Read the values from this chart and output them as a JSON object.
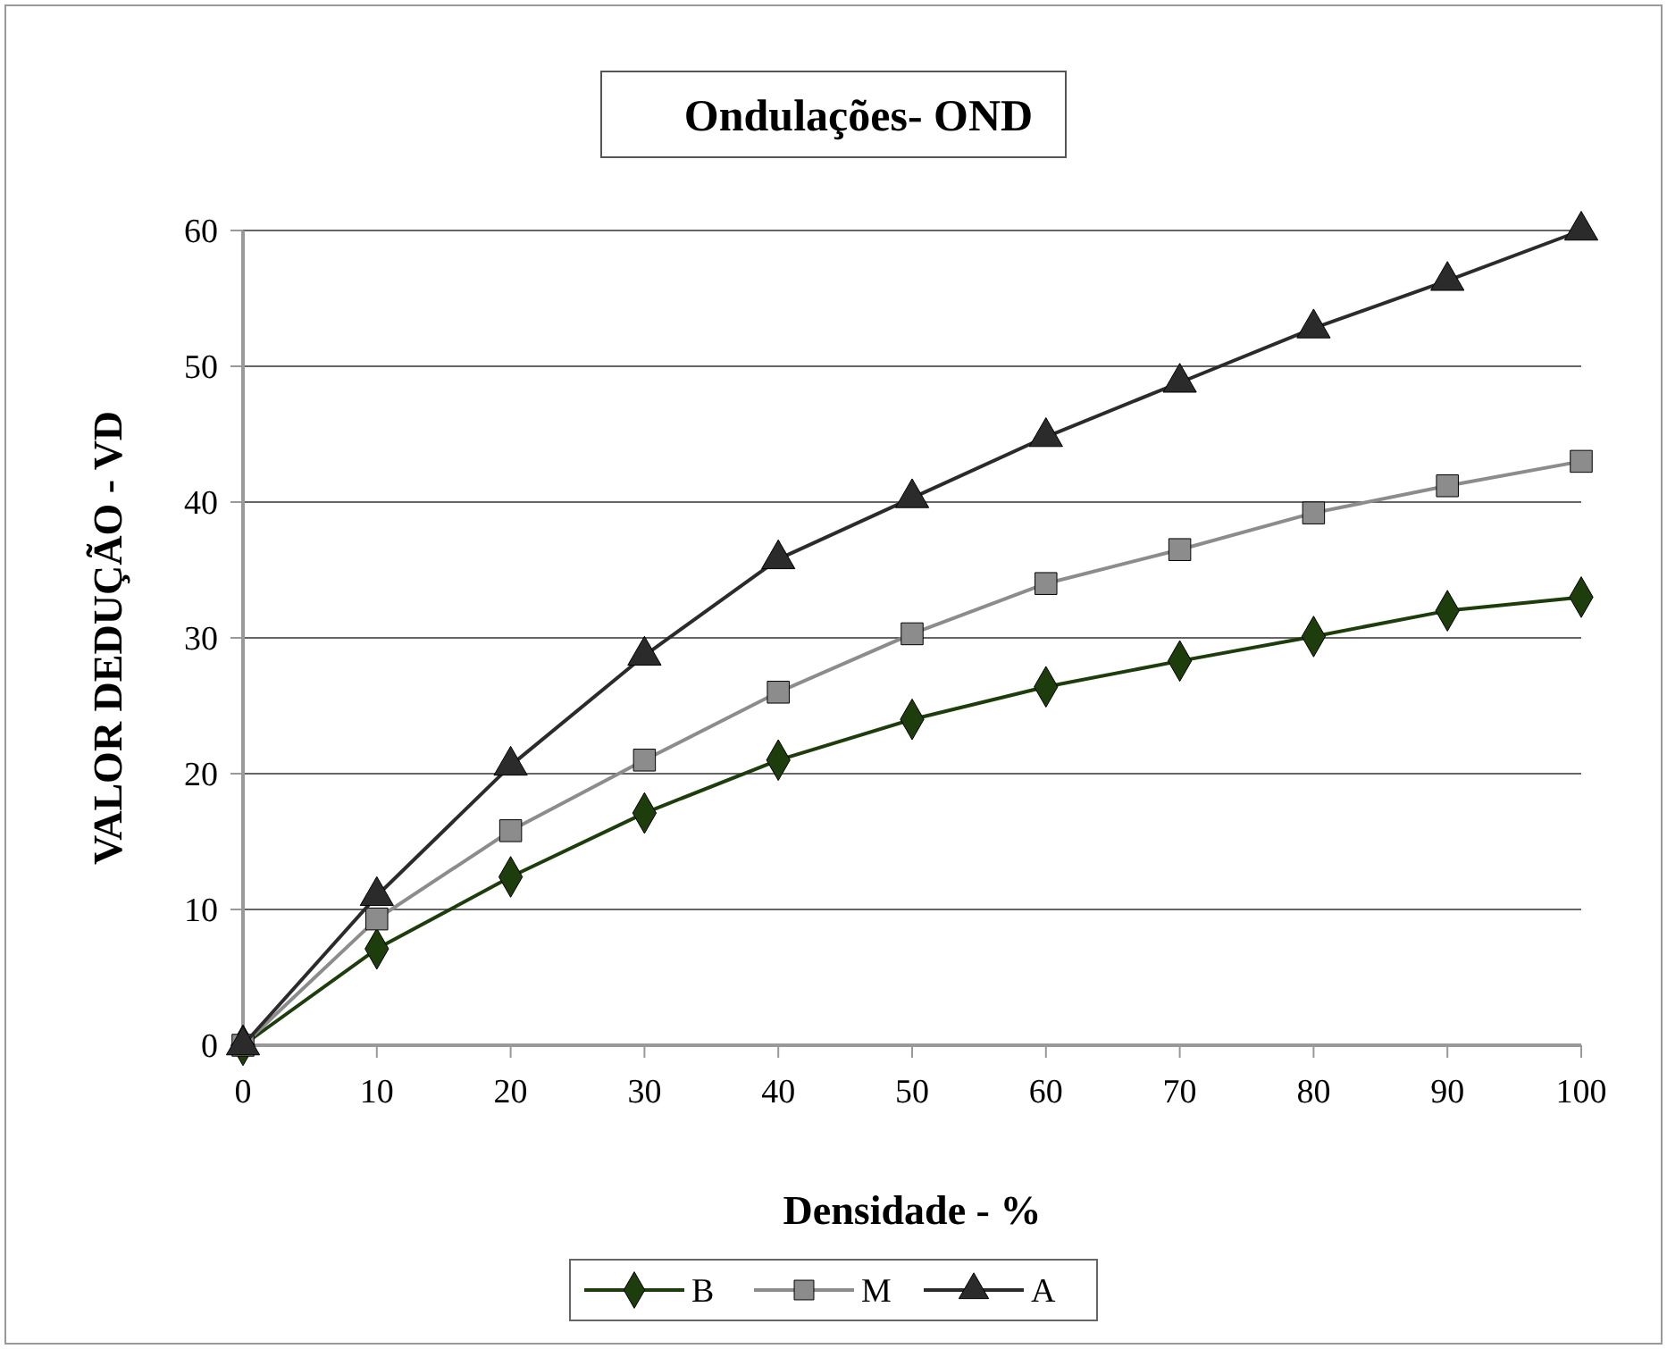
{
  "chart_data": {
    "type": "line",
    "title": "Ondulações- OND",
    "xlabel": "Densidade - %",
    "ylabel": "VALOR DEDUÇÃO - VD",
    "x": [
      0,
      10,
      20,
      30,
      40,
      50,
      60,
      70,
      80,
      90,
      100
    ],
    "series": [
      {
        "name": "B",
        "color": "#1e3d0c",
        "marker": "diamond",
        "values": [
          0,
          7.1,
          12.4,
          17.1,
          21,
          24,
          26.4,
          28.3,
          30.1,
          32,
          33
        ]
      },
      {
        "name": "M",
        "color": "#8c8c8c",
        "marker": "square",
        "values": [
          0,
          9.3,
          15.8,
          21,
          26,
          30.3,
          34,
          36.5,
          39.2,
          41.2,
          43
        ]
      },
      {
        "name": "A",
        "color": "#2b2b2b",
        "marker": "triangle",
        "values": [
          0,
          11,
          20.6,
          28.7,
          35.8,
          40.3,
          44.8,
          48.8,
          52.8,
          56.3,
          60
        ]
      }
    ],
    "xlim": [
      0,
      100
    ],
    "xticks": [
      0,
      10,
      20,
      30,
      40,
      50,
      60,
      70,
      80,
      90,
      100
    ],
    "ylim": [
      0,
      60
    ],
    "yticks": [
      0,
      10,
      20,
      30,
      40,
      50,
      60
    ],
    "grid": "y",
    "legend": "bottom",
    "line_style": "solid"
  }
}
